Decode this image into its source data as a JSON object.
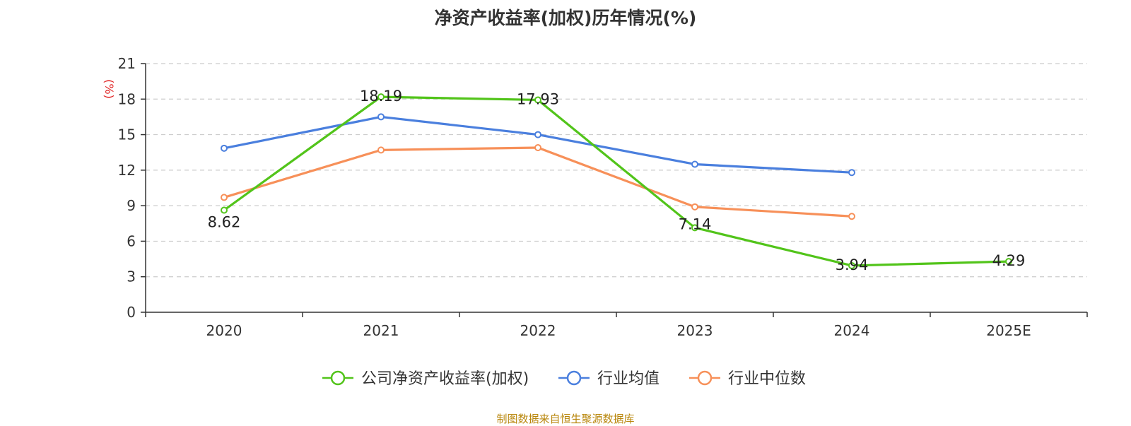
{
  "chart_data": {
    "type": "line",
    "title": "净资产收益率(加权)历年情况(%)",
    "xlabel": "",
    "ylabel": "(%)",
    "categories": [
      "2020",
      "2021",
      "2022",
      "2023",
      "2024",
      "2025E"
    ],
    "ylim": [
      0,
      21
    ],
    "yticks": [
      0,
      3,
      6,
      9,
      12,
      15,
      18,
      21
    ],
    "grid": true,
    "legend_position": "bottom-center",
    "series": [
      {
        "name": "公司净资产收益率(加权)",
        "color": "#52c41a",
        "values": [
          8.62,
          18.19,
          17.93,
          7.14,
          3.94,
          4.29
        ],
        "labels": [
          "8.62",
          "18.19",
          "17.93",
          "7.14",
          "3.94",
          "4.29"
        ]
      },
      {
        "name": "行业均值",
        "color": "#4a7fde",
        "values": [
          13.85,
          16.5,
          15.0,
          12.5,
          11.8,
          null
        ]
      },
      {
        "name": "行业中位数",
        "color": "#f79059",
        "values": [
          9.7,
          13.7,
          13.9,
          8.9,
          8.1,
          null
        ]
      }
    ]
  },
  "footer": {
    "source": "制图数据来自恒生聚源数据库"
  }
}
